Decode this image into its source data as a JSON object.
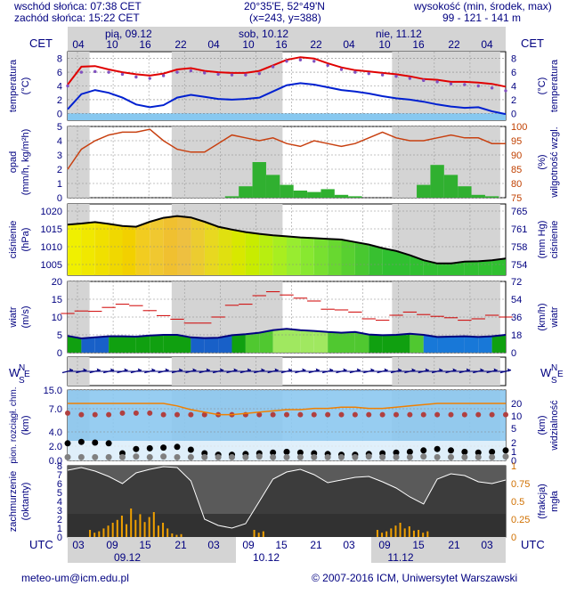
{
  "header": {
    "sunrise": "wschód słońca: 07:38 CET",
    "sunset": "zachód słońca: 15:22 CET",
    "coords": "20°35'E, 52°49'N",
    "grid": "(x=243, y=388)",
    "altitude_label": "wysokość (min, środek, max)",
    "altitude_values": "99 - 121 - 141 m"
  },
  "timeline": {
    "top_label": "CET",
    "bottom_label": "UTC",
    "days_top": [
      "pią, 09.12",
      "sob, 10.12",
      "nie, 11.12"
    ],
    "days_bottom": [
      "09.12",
      "10.12",
      "11.12"
    ],
    "hours_top": [
      "04",
      "10",
      "16",
      "22",
      "04",
      "10",
      "16",
      "22",
      "04",
      "10",
      "16",
      "22",
      "04"
    ],
    "hours_bottom": [
      "03",
      "09",
      "15",
      "21",
      "03",
      "09",
      "15",
      "21",
      "03",
      "09",
      "15",
      "21",
      "03"
    ]
  },
  "chart_data": [
    {
      "type": "line",
      "ylabel_left": "temperatura (°C)",
      "ylabel_right": "temperatura (°C)",
      "ylim": [
        -1,
        9
      ],
      "y_ticks": [
        0,
        2,
        4,
        6,
        8
      ],
      "series": [
        {
          "values": [
            4.2,
            6.8,
            6.9,
            6.4,
            6.0,
            5.7,
            5.5,
            5.8,
            6.4,
            6.6,
            6.2,
            6.0,
            5.9,
            5.9,
            6.2,
            7.0,
            7.8,
            8.2,
            8.0,
            7.3,
            6.7,
            6.3,
            6.1,
            5.9,
            5.7,
            5.4,
            5.0,
            4.9,
            4.6,
            4.6,
            4.5,
            4.3,
            3.9
          ]
        },
        {
          "values": [
            4.0,
            6.0,
            6.1,
            6.0,
            5.7,
            5.3,
            5.1,
            5.5,
            6.0,
            6.2,
            5.9,
            5.7,
            5.6,
            5.6,
            5.8,
            6.8,
            7.6,
            7.8,
            7.6,
            7.0,
            6.4,
            6.0,
            5.8,
            5.6,
            5.4,
            5.1,
            4.8,
            4.6,
            4.3,
            4.2,
            4.0,
            3.7,
            3.3
          ]
        },
        {
          "values": [
            0.6,
            2.8,
            3.4,
            3.0,
            2.3,
            1.3,
            0.9,
            1.2,
            2.3,
            2.7,
            2.4,
            2.1,
            2.0,
            2.1,
            2.3,
            3.2,
            4.1,
            4.4,
            4.2,
            3.8,
            3.4,
            3.2,
            2.9,
            2.5,
            2.2,
            2.0,
            1.7,
            1.3,
            1.0,
            0.8,
            0.9,
            0.3,
            -0.1
          ]
        }
      ]
    },
    {
      "type": "bar",
      "ylabel_left": "opad (mm/h, kg/m²h)",
      "ylabel_right": "wilgotność wzgl. (%)",
      "ylim": [
        0,
        5
      ],
      "y_ticks": [
        0,
        1,
        2,
        3,
        4,
        5
      ],
      "y2lim": [
        75,
        100
      ],
      "y2_ticks": [
        75,
        80,
        85,
        90,
        95,
        100
      ],
      "values": [
        0,
        0,
        0,
        0,
        0,
        0,
        0,
        0,
        0,
        0,
        0,
        0,
        0.1,
        0.8,
        2.5,
        1.6,
        0.9,
        0.5,
        0.4,
        0.6,
        0.2,
        0.1,
        0,
        0,
        0,
        0,
        0.9,
        2.3,
        1.6,
        0.8,
        0.2,
        0.1,
        0
      ],
      "humidity": [
        85,
        92,
        95,
        97,
        98,
        98,
        99,
        95,
        92,
        91,
        91,
        94,
        97,
        96,
        95,
        96,
        94,
        93,
        95,
        94,
        93,
        94,
        96,
        98,
        96,
        95,
        95,
        96,
        97,
        96,
        96,
        94,
        94
      ]
    },
    {
      "type": "area",
      "ylabel_left": "ciśnienie (hPa)",
      "ylabel_right": "ciśnienie (mm Hg)",
      "ylim": [
        1002,
        1022
      ],
      "y_ticks": [
        1005,
        1010,
        1015,
        1020
      ],
      "y2_ticks": [
        754,
        758,
        761,
        765
      ],
      "values": [
        1016.2,
        1016.5,
        1016.9,
        1016.4,
        1015.8,
        1015.6,
        1017.0,
        1018.1,
        1018.6,
        1018.2,
        1017.0,
        1015.6,
        1014.8,
        1014.1,
        1013.6,
        1013.2,
        1012.9,
        1012.6,
        1012.4,
        1012.2,
        1012.0,
        1011.3,
        1010.6,
        1009.6,
        1008.8,
        1007.6,
        1006.2,
        1005.3,
        1005.3,
        1005.8,
        1005.9,
        1006.2,
        1006.7
      ]
    },
    {
      "type": "area",
      "ylabel_left": "wiatr (m/s)",
      "ylabel_right": "wiatr (km/h)",
      "ylim": [
        0,
        20
      ],
      "y_ticks": [
        0,
        5,
        10,
        15,
        20
      ],
      "y2_ticks": [
        0,
        18,
        36,
        54,
        72
      ],
      "values": [
        4.7,
        4.0,
        4.3,
        4.6,
        4.6,
        4.5,
        4.8,
        5.0,
        5.0,
        4.3,
        4.1,
        4.2,
        4.9,
        5.2,
        5.6,
        6.3,
        6.7,
        6.3,
        6.1,
        5.8,
        5.6,
        5.8,
        5.1,
        4.9,
        5.0,
        5.3,
        5.0,
        4.4,
        4.5,
        4.6,
        4.4,
        4.6,
        5.0
      ],
      "gusts": [
        11.0,
        11.7,
        11.6,
        12.7,
        13.6,
        13.2,
        11.8,
        10.4,
        9.4,
        8.3,
        8.3,
        10.0,
        13.3,
        13.6,
        16.0,
        17.1,
        16.2,
        15.3,
        14.5,
        12.2,
        12.0,
        11.4,
        9.5,
        9.1,
        10.5,
        11.4,
        10.7,
        10.2,
        9.8,
        9.1,
        9.5,
        10.5,
        10.0
      ]
    },
    {
      "type": "line",
      "ylabel_left": "W",
      "ylabel_mid_left": "E",
      "ylabel_right": "N",
      "ylabel_mid_right": "S"
    },
    {
      "type": "scatter",
      "ylabel_left": "pion. rozciągł. chm. (km)",
      "ylabel_right": "widzialność (km)",
      "ylim": [
        0,
        15
      ],
      "y_ticks": [
        "0.0",
        "2.0",
        "4.0",
        "7.0",
        "15.0"
      ],
      "y2_ticks": [
        "0",
        "1",
        "2",
        "5",
        "10",
        "20"
      ],
      "visibility": [
        20,
        20,
        20,
        20,
        20,
        20,
        20,
        20,
        18,
        15,
        13,
        11,
        11,
        12,
        13,
        14,
        15,
        15,
        16,
        16,
        17,
        17,
        16,
        16,
        17,
        18,
        19,
        20,
        20,
        20,
        20,
        20,
        20
      ],
      "cloud_top": [
        2.4,
        2.6,
        2.5,
        2.4,
        1.0,
        1.6,
        1.7,
        1.8,
        1.9,
        1.5,
        1.0,
        0.8,
        0.8,
        0.9,
        1.0,
        1.1,
        1.2,
        1.1,
        1.0,
        0.9,
        0.8,
        0.8,
        0.9,
        1.0,
        1.1,
        1.2,
        1.4,
        1.6,
        1.4,
        1.2,
        1.1,
        1.2,
        1.4
      ],
      "cloud_base": [
        0.2,
        0.2,
        0.2,
        0.2,
        0.2,
        0.3,
        0.2,
        0.3,
        0.2,
        0.2,
        0.2,
        0.2,
        0.2,
        0.2,
        0.3,
        0.2,
        0.2,
        0.2,
        0.2,
        0.2,
        0.2,
        0.2,
        0.3,
        0.2,
        0.2,
        0.2,
        0.3,
        0.2,
        0.2,
        0.2,
        0.2,
        0.2,
        0.3
      ],
      "high_cloud": [
        6.2,
        6.0,
        6.0,
        6.0,
        6.2,
        6.2,
        6.2,
        6.0,
        6.0,
        6.0,
        6.0,
        6.0,
        6.0,
        6.0,
        6.0,
        6.0,
        6.0,
        6.0,
        6.0,
        6.0,
        6.0,
        6.0,
        6.0,
        6.0,
        6.0,
        6.0,
        6.0,
        6.0,
        6.0,
        6.0,
        6.0,
        6.0,
        6.0
      ]
    },
    {
      "type": "bar",
      "ylabel_left": "zachmurzenie (oktanty)",
      "ylabel_right": "mgła (frakcja)",
      "ylim": [
        0,
        8
      ],
      "y_ticks": [
        0,
        1,
        2,
        3,
        4,
        5,
        6,
        7,
        8
      ],
      "y2lim": [
        0,
        1
      ],
      "y2_ticks": [
        "0",
        "0.25",
        "0.5",
        "0.75",
        "1"
      ],
      "fog": [
        0,
        0,
        0.1,
        0.2,
        0.3,
        0.4,
        0.35,
        0.2,
        0.05,
        0,
        0,
        0,
        0,
        0,
        0.1,
        0,
        0,
        0,
        0,
        0,
        0,
        0,
        0,
        0.1,
        0.2,
        0.15,
        0.1,
        0,
        0,
        0,
        0,
        0,
        0
      ],
      "cloud_cover": [
        7.5,
        7.8,
        7.4,
        6.8,
        6.0,
        7.2,
        7.6,
        7.9,
        7.8,
        6.3,
        2.0,
        1.3,
        1.0,
        1.5,
        4.0,
        6.5,
        7.3,
        7.6,
        7.0,
        6.1,
        6.4,
        6.7,
        6.8,
        6.2,
        5.5,
        4.5,
        3.7,
        6.5,
        7.1,
        6.9,
        6.2,
        6.0,
        6.4
      ]
    }
  ],
  "footer": {
    "email": "meteo-um@icm.edu.pl",
    "copyright": "© 2007-2016 ICM, Uniwersytet Warszawski"
  }
}
